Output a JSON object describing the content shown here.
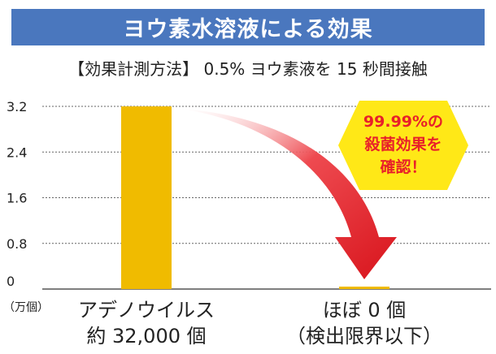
{
  "header": {
    "title": "ヨウ素水溶液による効果",
    "subtitle": "【効果計測方法】 0.5% ヨウ素液を 15 秒間接触"
  },
  "badge": {
    "line1": "99.99%の",
    "line2": "殺菌効果を",
    "line3": "確認！"
  },
  "colors": {
    "title_bg": "#4a77be",
    "bar": "#f0bb00",
    "arrow": "#e8202a",
    "badge_bg": "#ffe817",
    "badge_text": "#e8202a"
  },
  "chart_data": {
    "type": "bar",
    "categories": [
      [
        "アデノウイルス",
        "約 32,000 個"
      ],
      [
        "ほぼ 0 個",
        "（検出限界以下）"
      ]
    ],
    "values": [
      3.2,
      0.0
    ],
    "yticks": [
      "3.2",
      "2.4",
      "1.6",
      "0.8",
      "0"
    ],
    "ylim": [
      0,
      3.2
    ],
    "yunit": "（万個）",
    "grid": true
  }
}
